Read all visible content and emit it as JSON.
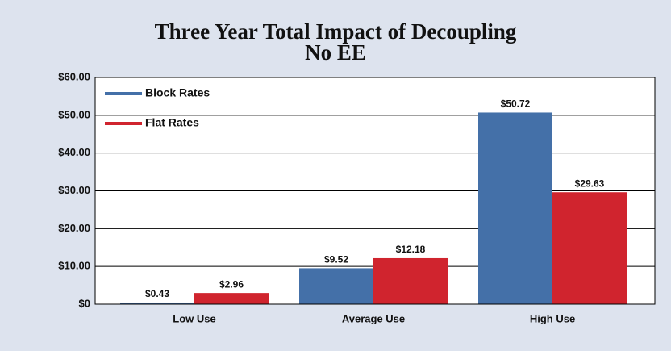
{
  "chart_data": {
    "type": "bar",
    "title": "Three Year Total Impact of Decoupling",
    "subtitle": "No EE",
    "categories": [
      "Low Use",
      "Average Use",
      "High Use"
    ],
    "series": [
      {
        "name": "Block Rates",
        "color": "#4470a8",
        "values": [
          0.43,
          9.52,
          50.72
        ],
        "value_labels": [
          "$0.43",
          "$9.52",
          "$50.72"
        ]
      },
      {
        "name": "Flat Rates",
        "color": "#d0242e",
        "values": [
          2.96,
          12.18,
          29.63
        ],
        "value_labels": [
          "$2.96",
          "$12.18",
          "$29.63"
        ]
      }
    ],
    "ylim": [
      0,
      60
    ],
    "yticks": [
      {
        "value": 0,
        "label": "$0"
      },
      {
        "value": 10,
        "label": "$10.00"
      },
      {
        "value": 20,
        "label": "$20.00"
      },
      {
        "value": 30,
        "label": "$30.00"
      },
      {
        "value": 40,
        "label": "$40.00"
      },
      {
        "value": 50,
        "label": "$50.00"
      },
      {
        "value": 60,
        "label": "$60.00"
      }
    ],
    "grid": true,
    "legend": "top-left"
  }
}
